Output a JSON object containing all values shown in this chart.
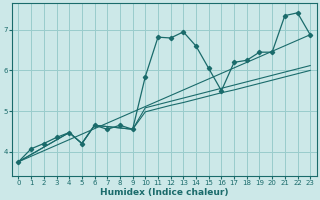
{
  "xlabel": "Humidex (Indice chaleur)",
  "ylabel": "",
  "bg_color": "#cce8e8",
  "grid_color": "#99cccc",
  "line_color": "#1a6b6b",
  "xlim": [
    -0.5,
    23.5
  ],
  "ylim": [
    3.4,
    7.65
  ],
  "xticks": [
    0,
    1,
    2,
    3,
    4,
    5,
    6,
    7,
    8,
    9,
    10,
    11,
    12,
    13,
    14,
    15,
    16,
    17,
    18,
    19,
    20,
    21,
    22,
    23
  ],
  "yticks": [
    4,
    5,
    6,
    7
  ],
  "series_main": {
    "x": [
      0,
      1,
      2,
      3,
      4,
      5,
      6,
      7,
      8,
      9,
      10,
      11,
      12,
      13,
      14,
      15,
      16,
      17,
      18,
      19,
      20,
      21,
      22,
      23
    ],
    "y": [
      3.75,
      4.07,
      4.2,
      4.35,
      4.47,
      4.2,
      4.65,
      4.55,
      4.65,
      4.55,
      5.85,
      6.82,
      6.8,
      6.95,
      6.6,
      6.05,
      5.5,
      6.2,
      6.25,
      6.45,
      6.45,
      7.35,
      7.42,
      6.88
    ]
  },
  "series_lines": [
    {
      "x": [
        0,
        4,
        5,
        6,
        9,
        10,
        11,
        12,
        13,
        14,
        15,
        16,
        17,
        18,
        19,
        20,
        21,
        22,
        23
      ],
      "y": [
        3.75,
        4.47,
        4.2,
        4.65,
        4.55,
        4.98,
        5.06,
        5.14,
        5.21,
        5.29,
        5.37,
        5.45,
        5.52,
        5.6,
        5.68,
        5.76,
        5.84,
        5.92,
        6.0
      ]
    },
    {
      "x": [
        0,
        4,
        5,
        6,
        9,
        10,
        11,
        12,
        13,
        14,
        15,
        16,
        17,
        18,
        19,
        20,
        21,
        22,
        23
      ],
      "y": [
        3.75,
        4.47,
        4.2,
        4.65,
        4.55,
        5.08,
        5.16,
        5.24,
        5.32,
        5.4,
        5.48,
        5.56,
        5.64,
        5.72,
        5.8,
        5.88,
        5.96,
        6.04,
        6.12
      ]
    },
    {
      "x": [
        0,
        23
      ],
      "y": [
        3.75,
        6.88
      ]
    }
  ]
}
